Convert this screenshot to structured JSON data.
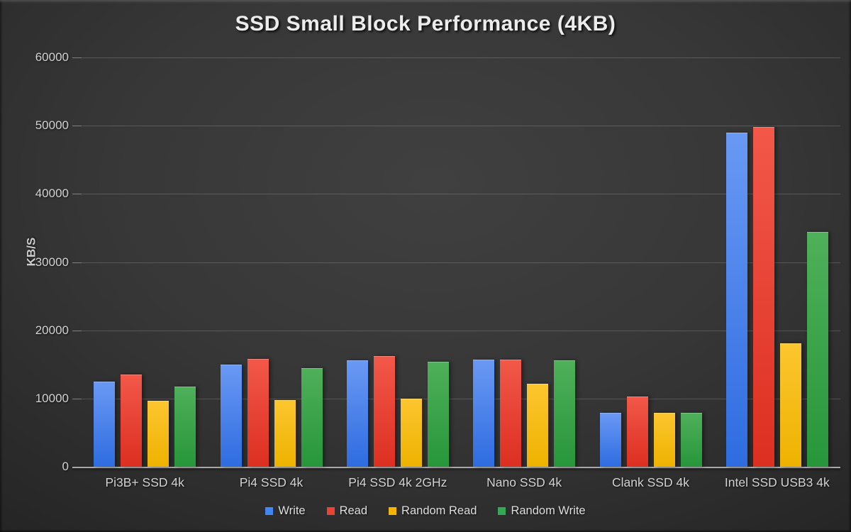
{
  "title": "SSD Small Block Performance (4KB)",
  "colors": {
    "background_center": "#404040",
    "background_edge": "#1e1e1e",
    "title_text": "#ececec",
    "axis_text": "#d2d2d2",
    "gridline": "rgba(255,255,255,0.17)",
    "baseline": "#a8a8a8",
    "write_blue": "#4285f4",
    "read_red": "#ea4335",
    "random_read_yellow": "#f4b400",
    "random_write_green": "#34a853"
  },
  "chart_data": {
    "type": "bar",
    "title": "SSD Small Block Performance (4KB)",
    "xlabel": "",
    "ylabel": "KB/S",
    "ylim": [
      0,
      60000
    ],
    "yticks": [
      0,
      10000,
      20000,
      30000,
      40000,
      50000,
      60000
    ],
    "grid": true,
    "legend_position": "bottom",
    "categories": [
      "Pi3B+ SSD 4k",
      "Pi4 SSD 4k",
      "Pi4 SSD 4k 2GHz",
      "Nano SSD 4k",
      "Clank SSD 4k",
      "Intel SSD USB3 4k"
    ],
    "series": [
      {
        "name": "Write",
        "color": "#4285f4",
        "gradient_top": "#6a99f4",
        "gradient_bottom": "#2e6ce0",
        "values": [
          12500,
          15000,
          15600,
          15700,
          7900,
          49000
        ]
      },
      {
        "name": "Read",
        "color": "#ea4335",
        "gradient_top": "#f25849",
        "gradient_bottom": "#dc2f21",
        "values": [
          13500,
          15800,
          16200,
          15700,
          10300,
          49800
        ]
      },
      {
        "name": "Random Read",
        "color": "#f4b400",
        "gradient_top": "#fcc62f",
        "gradient_bottom": "#eeb200",
        "values": [
          9700,
          9800,
          10000,
          12200,
          7900,
          18100
        ]
      },
      {
        "name": "Random Write",
        "color": "#34a853",
        "gradient_top": "#4fb05a",
        "gradient_bottom": "#27963b",
        "values": [
          11800,
          14500,
          15400,
          15600,
          7900,
          34400
        ]
      }
    ]
  }
}
